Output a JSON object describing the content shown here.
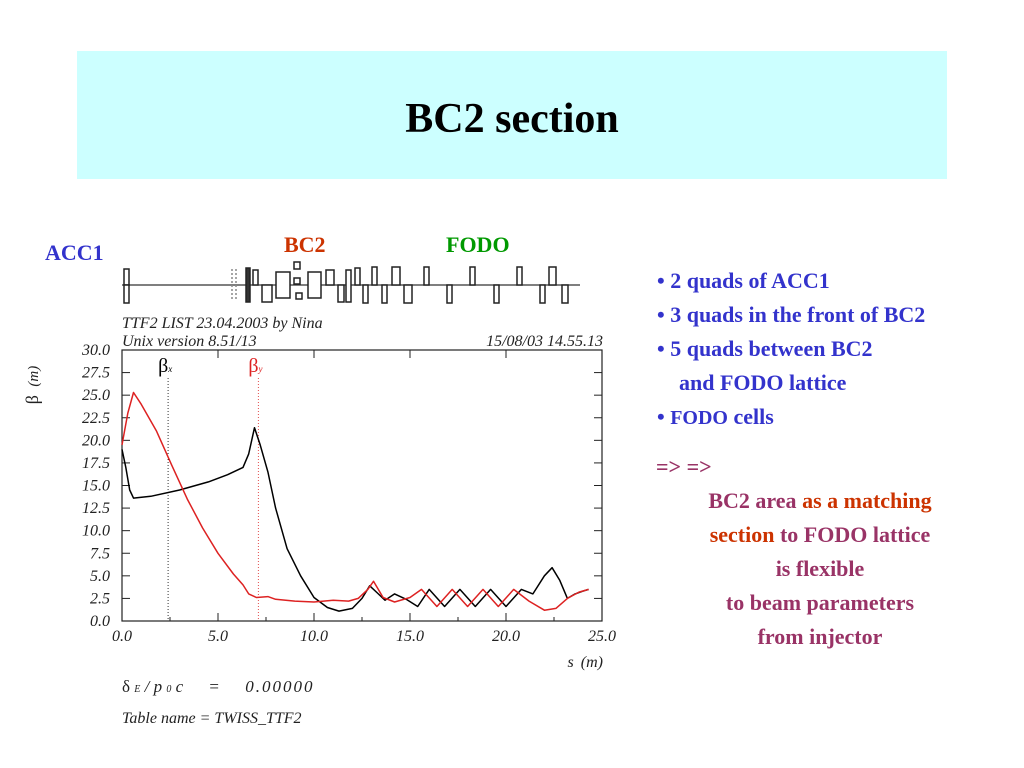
{
  "slide": {
    "title": "BC2 section"
  },
  "regions": {
    "acc1": {
      "label": "ACC1",
      "color": "#3333cc"
    },
    "bc2": {
      "label": "BC2",
      "color": "#cc3300"
    },
    "fodo": {
      "label": "FODO",
      "color": "#009900"
    }
  },
  "plot_header": {
    "line1": "TTF2 LIST 23.04.2003 by Nina",
    "line2": "Unix version 8.51/13",
    "timestamp": "15/08/03  14.55.13"
  },
  "plot_footer": {
    "delta_symbol": "δ",
    "delta_sub": "E",
    "delta_rest": "/ p",
    "delta_sub2": "0",
    "delta_rest2": "c",
    "delta_eq": "=",
    "delta_value": "0.00000",
    "table_name": "Table name = TWISS_TTF2"
  },
  "chart_data": {
    "type": "line",
    "ylabel": "β (m)",
    "ylabel_symbol": "β",
    "ylabel_unit": "(m)",
    "xlabel": "s (m)",
    "xlabel_symbol": "s",
    "xlabel_unit": "(m)",
    "xlim": [
      0.0,
      25.0
    ],
    "ylim": [
      0.0,
      30.0
    ],
    "x_ticks": [
      "0.0",
      "5.0",
      "10.0",
      "15.0",
      "20.0",
      "25.0"
    ],
    "x_tick_values": [
      0,
      5,
      10,
      15,
      20,
      25
    ],
    "y_ticks": [
      "0.0",
      "2.5",
      "5.0",
      "7.5",
      "10.0",
      "12.5",
      "15.0",
      "17.5",
      "20.0",
      "22.5",
      "25.0",
      "27.5",
      "30.0"
    ],
    "y_tick_values": [
      0,
      2.5,
      5,
      7.5,
      10,
      12.5,
      15,
      17.5,
      20,
      22.5,
      25,
      27.5,
      30
    ],
    "grid": false,
    "markers": [
      {
        "label": "β",
        "sub": "x",
        "x": 2.4,
        "color": "#000000"
      },
      {
        "label": "β",
        "sub": "y",
        "x": 7.1,
        "color": "#dd2222"
      }
    ],
    "series": [
      {
        "name": "βx",
        "color": "#000000",
        "points": [
          [
            0,
            19.0
          ],
          [
            0.2,
            17.0
          ],
          [
            0.4,
            14.5
          ],
          [
            0.6,
            13.6
          ],
          [
            1.5,
            13.8
          ],
          [
            3,
            14.5
          ],
          [
            4.5,
            15.4
          ],
          [
            5.5,
            16.2
          ],
          [
            6.3,
            17.0
          ],
          [
            6.6,
            18.5
          ],
          [
            6.9,
            21.4
          ],
          [
            7.2,
            19.5
          ],
          [
            7.6,
            16.5
          ],
          [
            8,
            12.5
          ],
          [
            8.6,
            8.0
          ],
          [
            9.3,
            5.0
          ],
          [
            10,
            2.6
          ],
          [
            10.7,
            1.5
          ],
          [
            11.3,
            1.1
          ],
          [
            12,
            1.4
          ],
          [
            12.5,
            2.5
          ],
          [
            12.9,
            3.9
          ],
          [
            13.3,
            3.1
          ],
          [
            13.7,
            2.3
          ],
          [
            14.2,
            3.0
          ],
          [
            14.8,
            2.4
          ],
          [
            15.4,
            1.6
          ],
          [
            16.0,
            3.5
          ],
          [
            16.8,
            1.6
          ],
          [
            17.6,
            3.5
          ],
          [
            18.4,
            1.6
          ],
          [
            19.2,
            3.5
          ],
          [
            20.0,
            1.6
          ],
          [
            20.8,
            3.5
          ],
          [
            21.4,
            3.0
          ],
          [
            22.0,
            5.0
          ],
          [
            22.4,
            5.9
          ],
          [
            22.8,
            4.5
          ],
          [
            23.2,
            2.5
          ],
          [
            23.6,
            3.0
          ],
          [
            24.0,
            3.3
          ],
          [
            24.3,
            3.5
          ]
        ]
      },
      {
        "name": "βy",
        "color": "#dd2222",
        "points": [
          [
            0,
            19.5
          ],
          [
            0.3,
            23.0
          ],
          [
            0.6,
            25.3
          ],
          [
            1.0,
            24.0
          ],
          [
            1.8,
            21.0
          ],
          [
            2.6,
            17.2
          ],
          [
            3.4,
            13.5
          ],
          [
            4.2,
            10.3
          ],
          [
            5.0,
            7.5
          ],
          [
            5.8,
            5.2
          ],
          [
            6.3,
            4.0
          ],
          [
            6.6,
            3.0
          ],
          [
            7.0,
            2.6
          ],
          [
            7.6,
            2.7
          ],
          [
            8.0,
            2.4
          ],
          [
            9.0,
            2.2
          ],
          [
            10,
            2.1
          ],
          [
            11,
            2.3
          ],
          [
            11.8,
            2.2
          ],
          [
            12.3,
            2.5
          ],
          [
            12.8,
            3.5
          ],
          [
            13.1,
            4.4
          ],
          [
            13.6,
            2.6
          ],
          [
            14.2,
            2.1
          ],
          [
            15.0,
            2.6
          ],
          [
            15.6,
            3.5
          ],
          [
            16.4,
            1.6
          ],
          [
            17.2,
            3.5
          ],
          [
            18.0,
            1.6
          ],
          [
            18.8,
            3.5
          ],
          [
            19.6,
            1.6
          ],
          [
            20.4,
            3.5
          ],
          [
            21.2,
            2.2
          ],
          [
            22.0,
            1.2
          ],
          [
            22.6,
            1.4
          ],
          [
            23.2,
            2.5
          ],
          [
            23.8,
            3.2
          ],
          [
            24.3,
            3.5
          ]
        ]
      }
    ]
  },
  "bullets": [
    {
      "text": "• 2 quads of ACC1"
    },
    {
      "text": "• 3 quads in the front of BC2"
    },
    {
      "text": "• 5 quads between BC2"
    },
    {
      "text": "and  FODO lattice"
    },
    {
      "prefix": "• ",
      "text_small": "FODO",
      "text": " cells"
    }
  ],
  "note": {
    "arrows": "=> =>",
    "line1_a": "BC2  area ",
    "line1_b": "as a matching",
    "line2_a": "section ",
    "line2_b": "to FODO lattice",
    "line3": "is flexible",
    "line4": "to beam  parameters",
    "line5": "from injector"
  }
}
